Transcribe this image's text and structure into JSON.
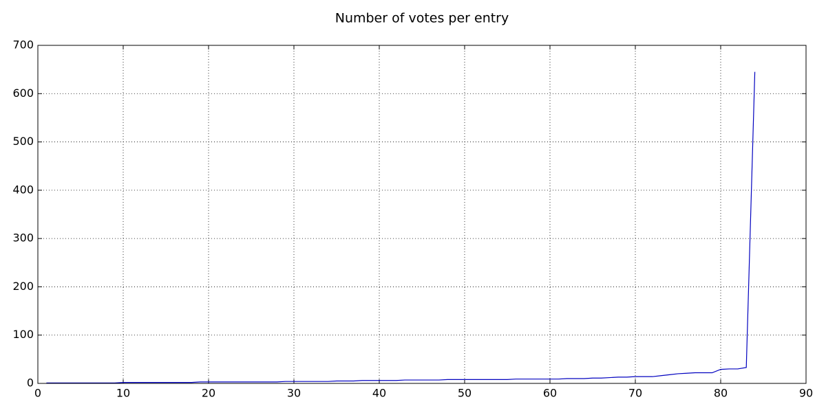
{
  "chart_data": {
    "type": "line",
    "title": "Number of votes per entry",
    "x": [
      1,
      2,
      3,
      4,
      5,
      6,
      7,
      8,
      9,
      10,
      11,
      12,
      13,
      14,
      15,
      16,
      17,
      18,
      19,
      20,
      21,
      22,
      23,
      24,
      25,
      26,
      27,
      28,
      29,
      30,
      31,
      32,
      33,
      34,
      35,
      36,
      37,
      38,
      39,
      40,
      41,
      42,
      43,
      44,
      45,
      46,
      47,
      48,
      49,
      50,
      51,
      52,
      53,
      54,
      55,
      56,
      57,
      58,
      59,
      60,
      61,
      62,
      63,
      64,
      65,
      66,
      67,
      68,
      69,
      70,
      71,
      72,
      73,
      74,
      75,
      76,
      77,
      78,
      79,
      80,
      81,
      82,
      83,
      84
    ],
    "series": [
      {
        "color": "#0000bf",
        "values": [
          1,
          1,
          1,
          1,
          1,
          1,
          1,
          1,
          1,
          2,
          2,
          2,
          2,
          2,
          2,
          2,
          2,
          2,
          3,
          3,
          3,
          3,
          3,
          3,
          3,
          3,
          3,
          3,
          4,
          4,
          4,
          4,
          4,
          4,
          5,
          5,
          5,
          6,
          6,
          6,
          6,
          6,
          7,
          7,
          7,
          7,
          7,
          8,
          8,
          8,
          8,
          8,
          8,
          8,
          8,
          9,
          9,
          9,
          9,
          9,
          9,
          10,
          10,
          10,
          11,
          11,
          12,
          13,
          13,
          14,
          14,
          14,
          16,
          18,
          20,
          21,
          22,
          22,
          22,
          29,
          30,
          30,
          33,
          645
        ]
      }
    ],
    "xlim": [
      0,
      90
    ],
    "xticks": [
      0,
      10,
      20,
      30,
      40,
      50,
      60,
      70,
      80,
      90
    ],
    "ylim": [
      0,
      700
    ],
    "yticks": [
      0,
      100,
      200,
      300,
      400,
      500,
      600,
      700
    ],
    "grid": true
  }
}
